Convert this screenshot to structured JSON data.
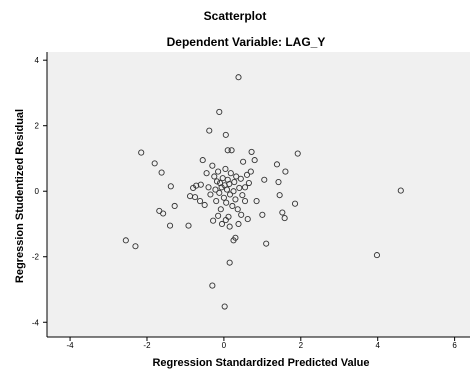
{
  "chart_data": {
    "type": "scatter",
    "title": "Scatterplot",
    "subtitle": "Dependent Variable: LAG_Y",
    "xlabel": "Regression Standardized Predicted Value",
    "ylabel": "Regression Studentized Residual",
    "xlim": [
      -4.6,
      6.4
    ],
    "ylim": [
      -4.45,
      4.25
    ],
    "x_ticks": [
      -4,
      -2,
      0,
      2,
      4,
      6
    ],
    "y_ticks": [
      -4,
      -2,
      0,
      2,
      4
    ],
    "grid": false,
    "colors": {
      "plot_background": "#f0f0f0",
      "marker_stroke": "#333333",
      "marker_fill": "none",
      "axis": "#000000"
    },
    "points": [
      {
        "x": 0.38,
        "y": 3.48
      },
      {
        "x": -0.12,
        "y": 2.42
      },
      {
        "x": -2.15,
        "y": 1.18
      },
      {
        "x": -1.8,
        "y": 0.85
      },
      {
        "x": -1.62,
        "y": 0.57
      },
      {
        "x": -1.38,
        "y": 0.15
      },
      {
        "x": -1.68,
        "y": -0.6
      },
      {
        "x": -1.58,
        "y": -0.68
      },
      {
        "x": -1.28,
        "y": -0.45
      },
      {
        "x": -1.4,
        "y": -1.05
      },
      {
        "x": -0.92,
        "y": -1.05
      },
      {
        "x": -0.88,
        "y": -0.15
      },
      {
        "x": -0.75,
        "y": -0.18
      },
      {
        "x": -0.6,
        "y": 0.2
      },
      {
        "x": -0.72,
        "y": 0.17
      },
      {
        "x": -0.45,
        "y": 0.55
      },
      {
        "x": -0.5,
        "y": -0.42
      },
      {
        "x": -0.4,
        "y": 0.12
      },
      {
        "x": -0.38,
        "y": 1.85
      },
      {
        "x": -0.28,
        "y": -0.9
      },
      {
        "x": -0.3,
        "y": 0.78
      },
      {
        "x": -0.25,
        "y": 0.45
      },
      {
        "x": -0.22,
        "y": 0.05
      },
      {
        "x": -0.2,
        "y": -0.3
      },
      {
        "x": -0.18,
        "y": 0.3
      },
      {
        "x": -0.15,
        "y": 0.6
      },
      {
        "x": -0.12,
        "y": -0.05
      },
      {
        "x": -0.1,
        "y": 0.25
      },
      {
        "x": -0.08,
        "y": -0.55
      },
      {
        "x": -0.06,
        "y": 0.12
      },
      {
        "x": -0.03,
        "y": 0.4
      },
      {
        "x": 0.0,
        "y": -0.2
      },
      {
        "x": 0.02,
        "y": 0.18
      },
      {
        "x": 0.04,
        "y": 0.68
      },
      {
        "x": 0.06,
        "y": -0.35
      },
      {
        "x": 0.08,
        "y": 0.05
      },
      {
        "x": 0.1,
        "y": 0.35
      },
      {
        "x": 0.12,
        "y": -0.78
      },
      {
        "x": 0.14,
        "y": 0.22
      },
      {
        "x": 0.16,
        "y": -0.1
      },
      {
        "x": 0.18,
        "y": 0.55
      },
      {
        "x": 0.2,
        "y": 1.25
      },
      {
        "x": 0.22,
        "y": -0.45
      },
      {
        "x": 0.25,
        "y": 0.0
      },
      {
        "x": 0.27,
        "y": 0.28
      },
      {
        "x": 0.3,
        "y": -0.25
      },
      {
        "x": 0.32,
        "y": 0.45
      },
      {
        "x": 0.05,
        "y": 1.72
      },
      {
        "x": 0.1,
        "y": 1.25
      },
      {
        "x": 0.36,
        "y": -0.55
      },
      {
        "x": 0.4,
        "y": 0.1
      },
      {
        "x": 0.44,
        "y": 0.38
      },
      {
        "x": 0.48,
        "y": -0.12
      },
      {
        "x": 0.5,
        "y": 0.9
      },
      {
        "x": 0.55,
        "y": -0.3
      },
      {
        "x": 0.6,
        "y": 0.5
      },
      {
        "x": 0.65,
        "y": 0.25
      },
      {
        "x": 0.72,
        "y": 1.2
      },
      {
        "x": 0.8,
        "y": 0.95
      },
      {
        "x": 0.85,
        "y": -0.3
      },
      {
        "x": 0.62,
        "y": -0.85
      },
      {
        "x": 0.38,
        "y": -1.0
      },
      {
        "x": 0.15,
        "y": -1.08
      },
      {
        "x": 0.05,
        "y": -0.88
      },
      {
        "x": -0.05,
        "y": -1.0
      },
      {
        "x": -0.15,
        "y": -0.75
      },
      {
        "x": 0.25,
        "y": -1.5
      },
      {
        "x": 0.3,
        "y": -1.42
      },
      {
        "x": 0.15,
        "y": -2.18
      },
      {
        "x": -0.3,
        "y": -2.88
      },
      {
        "x": 0.02,
        "y": -3.52
      },
      {
        "x": -0.62,
        "y": -0.3
      },
      {
        "x": -0.55,
        "y": 0.95
      },
      {
        "x": -0.8,
        "y": 0.1
      },
      {
        "x": 1.0,
        "y": -0.72
      },
      {
        "x": 1.05,
        "y": 0.35
      },
      {
        "x": 1.1,
        "y": -1.6
      },
      {
        "x": 1.38,
        "y": 0.82
      },
      {
        "x": 1.42,
        "y": 0.28
      },
      {
        "x": 1.45,
        "y": -0.12
      },
      {
        "x": 1.52,
        "y": -0.65
      },
      {
        "x": 1.58,
        "y": -0.82
      },
      {
        "x": 1.6,
        "y": 0.6
      },
      {
        "x": 1.85,
        "y": -0.38
      },
      {
        "x": 1.92,
        "y": 1.15
      },
      {
        "x": 3.98,
        "y": -1.95
      },
      {
        "x": 4.6,
        "y": 0.02
      },
      {
        "x": -2.55,
        "y": -1.5
      },
      {
        "x": -2.3,
        "y": -1.68
      },
      {
        "x": 0.7,
        "y": 0.6
      },
      {
        "x": -0.35,
        "y": -0.1
      },
      {
        "x": 0.45,
        "y": -0.72
      },
      {
        "x": 0.55,
        "y": 0.12
      }
    ]
  }
}
